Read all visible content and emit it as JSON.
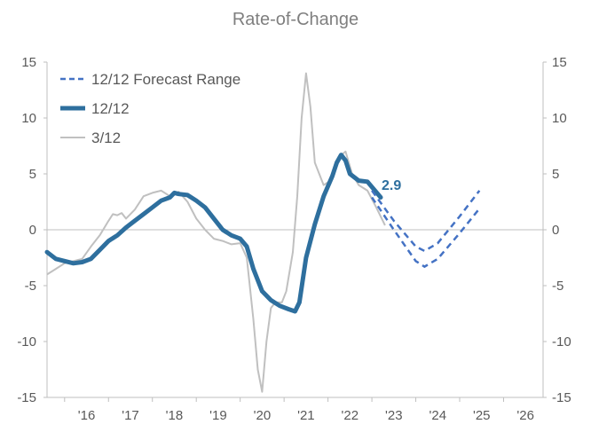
{
  "chart_data": {
    "type": "line",
    "title": "Rate-of-Change",
    "xlabel": "",
    "ylabel": "",
    "ylim": [
      -15,
      15
    ],
    "y_ticks": [
      15,
      10,
      5,
      0,
      -5,
      -10,
      -15
    ],
    "xlim": [
      2015.6,
      2026.9
    ],
    "x_ticks": [
      {
        "x": 2016.5,
        "label": "'16"
      },
      {
        "x": 2017.5,
        "label": "'17"
      },
      {
        "x": 2018.5,
        "label": "'18"
      },
      {
        "x": 2019.5,
        "label": "'19"
      },
      {
        "x": 2020.5,
        "label": "'20"
      },
      {
        "x": 2021.5,
        "label": "'21"
      },
      {
        "x": 2022.5,
        "label": "'22"
      },
      {
        "x": 2023.5,
        "label": "'23"
      },
      {
        "x": 2024.5,
        "label": "'24"
      },
      {
        "x": 2025.5,
        "label": "'25"
      },
      {
        "x": 2026.5,
        "label": "'26"
      }
    ],
    "legend_position": "top-left",
    "grid": false,
    "zero_line": true,
    "colors": {
      "main": "#2e6f9e",
      "forecast": "#4472c4",
      "rate312": "#c0c0c0",
      "axis": "#bfbfbf"
    },
    "series": [
      {
        "name": "12/12 Forecast Range",
        "style": "dashed",
        "lines": [
          [
            [
              2023.0,
              3.5
            ],
            [
              2023.5,
              0.8
            ],
            [
              2024.0,
              -1.5
            ],
            [
              2024.2,
              -1.9
            ],
            [
              2024.5,
              -1.2
            ],
            [
              2025.0,
              1.2
            ],
            [
              2025.45,
              3.5
            ]
          ],
          [
            [
              2023.0,
              2.9
            ],
            [
              2023.5,
              0.0
            ],
            [
              2024.0,
              -2.8
            ],
            [
              2024.2,
              -3.3
            ],
            [
              2024.5,
              -2.6
            ],
            [
              2025.0,
              -0.3
            ],
            [
              2025.45,
              1.9
            ]
          ]
        ]
      },
      {
        "name": "12/12",
        "style": "thick",
        "points": [
          [
            2015.6,
            -2.0
          ],
          [
            2015.8,
            -2.6
          ],
          [
            2016.0,
            -2.8
          ],
          [
            2016.2,
            -3.0
          ],
          [
            2016.4,
            -2.9
          ],
          [
            2016.6,
            -2.6
          ],
          [
            2016.8,
            -1.8
          ],
          [
            2017.0,
            -1.0
          ],
          [
            2017.2,
            -0.5
          ],
          [
            2017.4,
            0.2
          ],
          [
            2017.6,
            0.8
          ],
          [
            2017.8,
            1.4
          ],
          [
            2018.0,
            2.0
          ],
          [
            2018.2,
            2.6
          ],
          [
            2018.4,
            2.9
          ],
          [
            2018.5,
            3.3
          ],
          [
            2018.6,
            3.2
          ],
          [
            2018.8,
            3.1
          ],
          [
            2019.0,
            2.6
          ],
          [
            2019.2,
            2.0
          ],
          [
            2019.4,
            1.0
          ],
          [
            2019.6,
            0.0
          ],
          [
            2019.8,
            -0.5
          ],
          [
            2020.0,
            -0.8
          ],
          [
            2020.15,
            -1.5
          ],
          [
            2020.3,
            -3.5
          ],
          [
            2020.5,
            -5.5
          ],
          [
            2020.7,
            -6.3
          ],
          [
            2020.9,
            -6.8
          ],
          [
            2021.1,
            -7.1
          ],
          [
            2021.25,
            -7.3
          ],
          [
            2021.35,
            -6.5
          ],
          [
            2021.5,
            -2.5
          ],
          [
            2021.7,
            0.5
          ],
          [
            2021.9,
            3.0
          ],
          [
            2022.1,
            4.8
          ],
          [
            2022.2,
            6.0
          ],
          [
            2022.3,
            6.7
          ],
          [
            2022.4,
            6.2
          ],
          [
            2022.5,
            5.0
          ],
          [
            2022.7,
            4.4
          ],
          [
            2022.9,
            4.3
          ],
          [
            2023.05,
            3.6
          ],
          [
            2023.2,
            2.9
          ]
        ],
        "end_label": "2.9"
      },
      {
        "name": "3/12",
        "style": "thin",
        "points": [
          [
            2015.6,
            -4.0
          ],
          [
            2015.8,
            -3.5
          ],
          [
            2016.0,
            -3.0
          ],
          [
            2016.2,
            -2.8
          ],
          [
            2016.4,
            -2.6
          ],
          [
            2016.6,
            -1.5
          ],
          [
            2016.8,
            -0.5
          ],
          [
            2017.0,
            0.8
          ],
          [
            2017.1,
            1.4
          ],
          [
            2017.2,
            1.3
          ],
          [
            2017.3,
            1.5
          ],
          [
            2017.4,
            1.0
          ],
          [
            2017.6,
            1.8
          ],
          [
            2017.8,
            3.0
          ],
          [
            2018.0,
            3.3
          ],
          [
            2018.2,
            3.5
          ],
          [
            2018.4,
            3.0
          ],
          [
            2018.6,
            3.4
          ],
          [
            2018.8,
            2.5
          ],
          [
            2019.0,
            1.0
          ],
          [
            2019.2,
            0.0
          ],
          [
            2019.4,
            -0.8
          ],
          [
            2019.6,
            -1.0
          ],
          [
            2019.8,
            -1.3
          ],
          [
            2020.0,
            -1.2
          ],
          [
            2020.15,
            -2.5
          ],
          [
            2020.3,
            -8.0
          ],
          [
            2020.4,
            -12.5
          ],
          [
            2020.5,
            -14.5
          ],
          [
            2020.6,
            -10.0
          ],
          [
            2020.7,
            -7.0
          ],
          [
            2020.8,
            -6.5
          ],
          [
            2020.95,
            -6.5
          ],
          [
            2021.05,
            -5.5
          ],
          [
            2021.2,
            -2.0
          ],
          [
            2021.3,
            3.0
          ],
          [
            2021.4,
            10.0
          ],
          [
            2021.5,
            14.0
          ],
          [
            2021.6,
            11.0
          ],
          [
            2021.7,
            6.0
          ],
          [
            2021.9,
            4.0
          ],
          [
            2022.1,
            4.5
          ],
          [
            2022.25,
            6.5
          ],
          [
            2022.4,
            7.0
          ],
          [
            2022.55,
            5.0
          ],
          [
            2022.7,
            4.0
          ],
          [
            2022.9,
            3.5
          ],
          [
            2023.1,
            2.0
          ],
          [
            2023.3,
            0.4
          ]
        ]
      }
    ]
  }
}
